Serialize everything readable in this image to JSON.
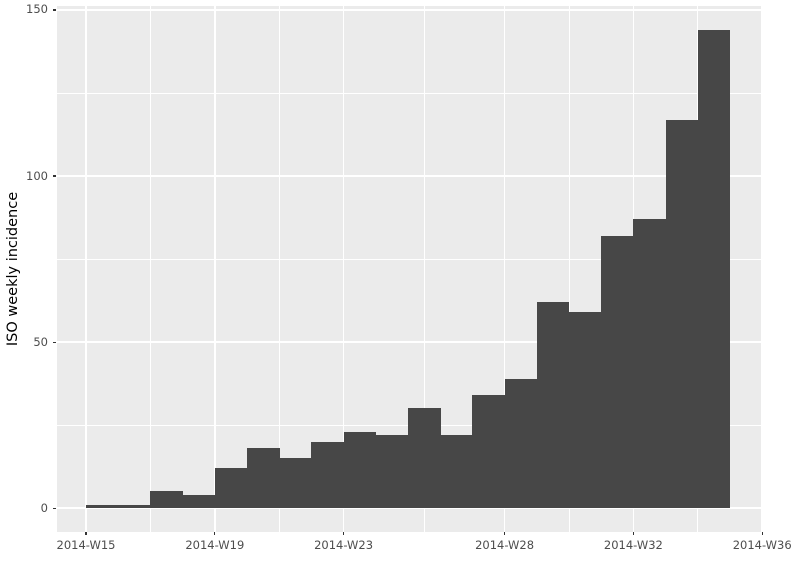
{
  "chart_data": {
    "type": "bar",
    "title": "",
    "xlabel": "",
    "ylabel": "ISO weekly incidence",
    "categories": [
      "2014-W15",
      "2014-W16",
      "2014-W17",
      "2014-W18",
      "2014-W19",
      "2014-W20",
      "2014-W21",
      "2014-W22",
      "2014-W23",
      "2014-W24",
      "2014-W25",
      "2014-W26",
      "2014-W27",
      "2014-W28",
      "2014-W29",
      "2014-W30",
      "2014-W31",
      "2014-W32",
      "2014-W33",
      "2014-W34"
    ],
    "values": [
      1,
      1,
      5,
      4,
      12,
      18,
      15,
      20,
      23,
      22,
      30,
      22,
      34,
      39,
      62,
      59,
      82,
      87,
      117,
      144
    ],
    "x_tick_labels": [
      "2014-W15",
      "2014-W19",
      "2014-W23",
      "2014-W28",
      "2014-W32",
      "2014-W36"
    ],
    "x_tick_indices": [
      0,
      4,
      8,
      13,
      17,
      21
    ],
    "y_ticks": [
      0,
      50,
      100,
      150
    ],
    "y_minor_gridlines": [
      25,
      75,
      125
    ],
    "ylim": [
      -7.2,
      151.2
    ],
    "grid": true,
    "legend": "none",
    "bar_width_weeks": 1,
    "colors": {
      "bar_fill": "#474747",
      "panel_bg": "#EBEBEB",
      "grid_major": "#FFFFFF",
      "grid_minor": "#FFFFFF",
      "tick_label": "#4D4D4D",
      "axis_title": "#000000",
      "tick_mark": "#333333",
      "figure_bg": "#FFFFFF"
    }
  }
}
